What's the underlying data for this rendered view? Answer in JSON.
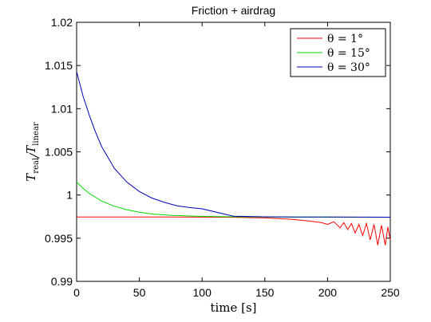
{
  "chart_data": {
    "type": "line",
    "title": "Friction + airdrag",
    "xlabel": "time [s]",
    "ylabel": {
      "main": "T",
      "sub_num": "real",
      "sub_den": "linear"
    },
    "xlim": [
      0,
      250
    ],
    "ylim": [
      0.99,
      1.02
    ],
    "xticks": [
      0,
      50,
      100,
      150,
      200,
      250
    ],
    "yticks": [
      0.99,
      0.995,
      1,
      1.005,
      1.01,
      1.015,
      1.02
    ],
    "xtick_labels": [
      "0",
      "50",
      "100",
      "150",
      "200",
      "250"
    ],
    "ytick_labels": [
      "0.99",
      "0.995",
      "1",
      "1.005",
      "1.01",
      "1.015",
      "1.02"
    ],
    "grid": false,
    "legend_position": "top-right",
    "series": [
      {
        "name": "θ = 1°",
        "color": "#ff0000",
        "x": [
          0,
          25,
          50,
          75,
          100,
          125,
          150,
          170,
          185,
          195,
          200,
          205,
          210,
          213,
          216,
          219,
          222,
          225,
          228,
          231,
          234,
          237,
          240,
          243,
          246,
          248,
          250
        ],
        "y": [
          0.99745,
          0.99745,
          0.99745,
          0.99745,
          0.99744,
          0.99742,
          0.99735,
          0.9972,
          0.997,
          0.9968,
          0.9966,
          0.9969,
          0.9962,
          0.9968,
          0.996,
          0.9967,
          0.9956,
          0.9966,
          0.9953,
          0.9967,
          0.9948,
          0.9966,
          0.9942,
          0.9965,
          0.9942,
          0.9963,
          0.9948
        ]
      },
      {
        "name": "θ = 15°",
        "color": "#00dd00",
        "x": [
          0,
          5,
          10,
          20,
          30,
          40,
          50,
          60,
          75,
          100,
          125,
          150,
          175,
          200,
          225,
          250
        ],
        "y": [
          1.0015,
          1.0008,
          1.0002,
          0.9993,
          0.9987,
          0.9983,
          0.998,
          0.9978,
          0.99765,
          0.99752,
          0.99748,
          0.99745,
          0.99744,
          0.99744,
          0.99743,
          0.99742
        ]
      },
      {
        "name": "θ = 30°",
        "color": "#0000bb",
        "x": [
          0,
          5,
          10,
          15,
          20,
          30,
          40,
          50,
          60,
          70,
          80,
          90,
          100,
          125,
          150,
          175,
          200,
          225,
          250
        ],
        "y": [
          1.0143,
          1.0115,
          1.0093,
          1.0073,
          1.0056,
          1.0031,
          1.0015,
          1.0004,
          0.99965,
          0.99915,
          0.99875,
          0.99855,
          0.9984,
          0.99755,
          0.99748,
          0.99746,
          0.99745,
          0.99744,
          0.99743
        ]
      }
    ]
  }
}
